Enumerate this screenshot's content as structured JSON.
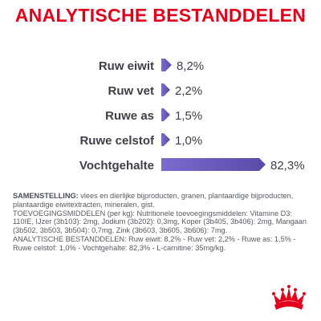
{
  "title": "ANALYTISCHE BESTANDDELEN",
  "colors": {
    "title": "#e2001a",
    "bar": "#7a6bcf",
    "bar_dark": "#5a4aa8",
    "label": "#3d4047",
    "logo": "#e2001a"
  },
  "chart_data": {
    "type": "bar",
    "orientation": "horizontal",
    "categories": [
      "Ruw eiwit",
      "Ruw vet",
      "Ruwe as",
      "Ruwe celstof",
      "Vochtgehalte"
    ],
    "values": [
      8.2,
      2.2,
      1.5,
      1.0,
      82.3
    ],
    "value_labels": [
      "8,2%",
      "2,2%",
      "1,5%",
      "1,0%",
      "82,3%"
    ],
    "unit": "%",
    "xlim": [
      0,
      82.3
    ],
    "grid": false,
    "legend": "none"
  },
  "composition": {
    "p1_label": "SAMENSTELLING:",
    "p1_text": " vlees en dierlijke bijproducten, granen, plantaardige bijproducten, plantaardige eiwitextracten, mineralen, gist.",
    "p2_text": "TOEVOEGINGSMIDDELEN (per kg): Nutritionele toevoegingsmiddelen: Vitamine D3: 110IE, IJzer (3b103): 2mg, Jodium (3b202): 0,3mg, Koper (3b405, 3b406): 2mg, Mangaan (3b502, 3b503, 3b504): 0,7mg, Zink (3b603, 3b605, 3b606): 7mg.",
    "p3_text": "ANALYTISCHE BESTANDDELEN: Ruw eiwit: 8,2% - Ruw vet: 2,2% - Ruwe as: 1,5% - Ruwe celstof: 1,0% - Vochtgehalte: 82,3% - L-carnitine: 35mg/kg."
  },
  "logo": {
    "icon": "royal-canin-crown-icon"
  }
}
